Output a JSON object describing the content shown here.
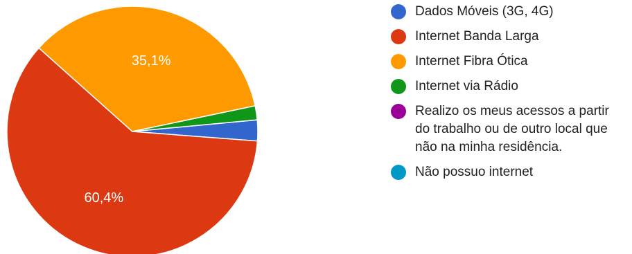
{
  "chart_data": {
    "type": "pie",
    "title": "",
    "categories": [
      "Dados Móveis (3G, 4G)",
      "Internet Banda Larga",
      "Internet Fibra Ótica",
      "Internet via Rádio",
      "Realizo os meus acessos a partir do trabalho ou de outro local que não na minha residência.",
      "Não possuo internet"
    ],
    "values": [
      2.7,
      60.4,
      35.1,
      1.8,
      0,
      0
    ],
    "data_labels": [
      "",
      "60,4%",
      "35,1%",
      "",
      "",
      ""
    ],
    "colors": [
      "#3366cc",
      "#dc3912",
      "#ff9900",
      "#109618",
      "#990099",
      "#0099c6"
    ],
    "legend_position": "right",
    "start_direction": "right",
    "rotation": "clockwise"
  }
}
